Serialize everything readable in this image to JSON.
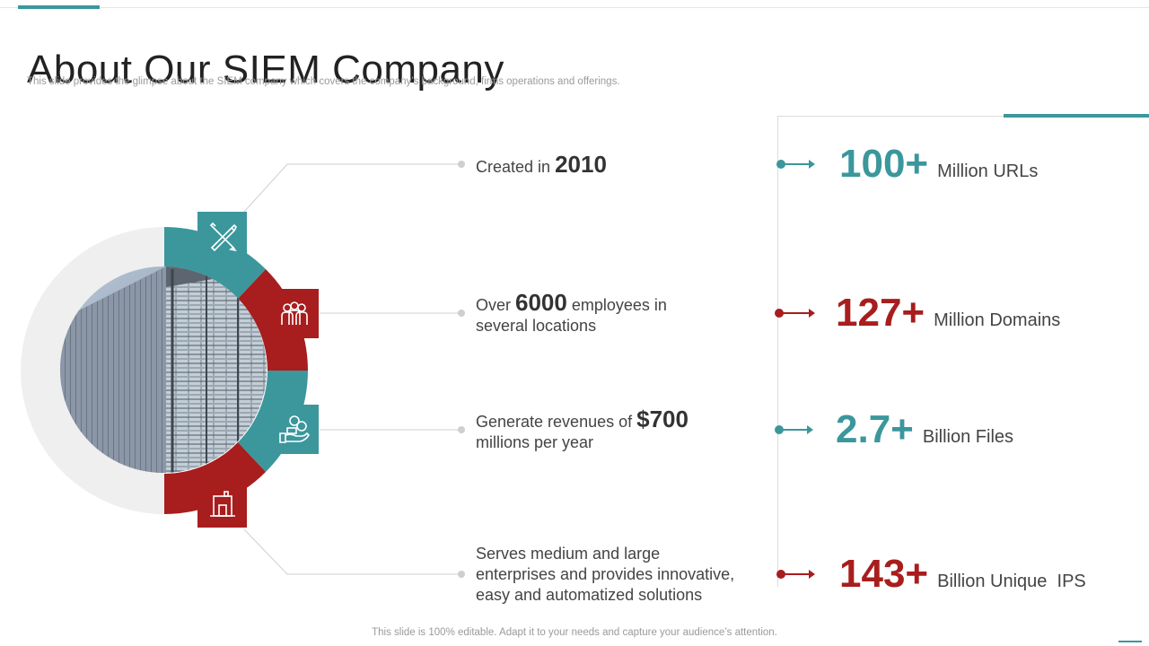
{
  "header": {
    "title": "About Our SIEM Company",
    "subtitle": "This slide provides the glimpse about the SIEM company which covers the company’s background, firms operations and offerings."
  },
  "features": [
    {
      "pre": "Created in ",
      "highlight": "2010",
      "post": "",
      "icon": "tools-icon"
    },
    {
      "pre": "Over ",
      "highlight": "6000",
      "post": " employees in",
      "line2": "several locations",
      "icon": "people-icon"
    },
    {
      "pre": "Generate revenues of ",
      "highlight": "$700",
      "post": "",
      "line2": "millions per year",
      "icon": "money-hand-icon"
    },
    {
      "line1": "Serves medium and large",
      "line2": "enterprises and provides innovative,",
      "line3": "easy and automatized solutions",
      "icon": "building-icon"
    }
  ],
  "stats": [
    {
      "value": "100+",
      "label": "Million URLs",
      "color": "#3b979c"
    },
    {
      "value": "127+",
      "label": "Million Domains",
      "color": "#a81d1d"
    },
    {
      "value": "2.7+",
      "label": "Billion Files",
      "color": "#3b979c"
    },
    {
      "value": "143+",
      "label": "Billion Unique  IPS",
      "color": "#a81d1d"
    }
  ],
  "colors": {
    "teal": "#3b979c",
    "red": "#a81d1d"
  },
  "footer": "This slide is 100% editable. Adapt it to your needs and capture your audience’s attention."
}
